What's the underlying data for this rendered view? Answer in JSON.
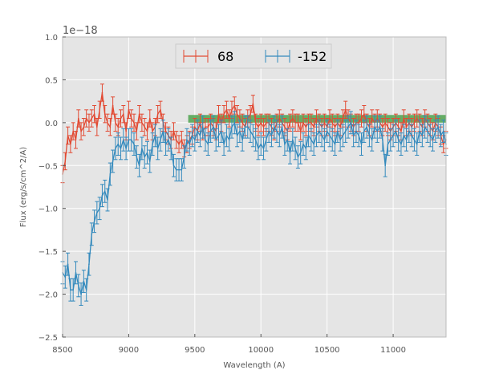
{
  "chart_data": {
    "type": "line",
    "title": "",
    "xlabel": "Wavelength (A)",
    "ylabel": "Flux (erg/s/cm^2/A)",
    "offset_label": "1e−18",
    "xlim": [
      8500,
      11400
    ],
    "ylim": [
      -2.5,
      1.0
    ],
    "x_ticks": [
      8500,
      9000,
      9500,
      10000,
      10500,
      11000
    ],
    "x_tick_labels": [
      "8500",
      "9000",
      "9500",
      "10000",
      "10500",
      "11000"
    ],
    "y_ticks": [
      -2.5,
      -2.0,
      -1.5,
      -1.0,
      -0.5,
      0.0,
      0.5,
      1.0
    ],
    "y_tick_labels": [
      "−2.5",
      "−2.0",
      "−1.5",
      "−1.0",
      "−0.5",
      "0.0",
      "0.5",
      "1.0"
    ],
    "grid": true,
    "background": "#e5e5e5",
    "legend_position": "top-center",
    "band": {
      "x_start": 9450,
      "x_end": 11400,
      "y_low": 0.0,
      "y_high": 0.09,
      "color": "#3a9a3a"
    },
    "series": [
      {
        "name": "68",
        "color": "#e24a33",
        "x": [
          8500,
          8520,
          8540,
          8560,
          8580,
          8600,
          8620,
          8640,
          8660,
          8680,
          8700,
          8720,
          8740,
          8760,
          8780,
          8800,
          8820,
          8840,
          8860,
          8880,
          8900,
          8920,
          8940,
          8960,
          8980,
          9000,
          9020,
          9040,
          9060,
          9080,
          9100,
          9120,
          9140,
          9160,
          9180,
          9200,
          9220,
          9240,
          9260,
          9280,
          9300,
          9320,
          9340,
          9360,
          9380,
          9400,
          9420,
          9440,
          9460,
          9480,
          9500,
          9520,
          9540,
          9560,
          9580,
          9600,
          9620,
          9640,
          9660,
          9680,
          9700,
          9720,
          9740,
          9760,
          9780,
          9800,
          9820,
          9840,
          9860,
          9880,
          9900,
          9920,
          9940,
          9960,
          9980,
          10000,
          10020,
          10040,
          10060,
          10080,
          10100,
          10120,
          10140,
          10160,
          10180,
          10200,
          10220,
          10240,
          10260,
          10280,
          10300,
          10320,
          10340,
          10360,
          10380,
          10400,
          10420,
          10440,
          10460,
          10480,
          10500,
          10520,
          10540,
          10560,
          10580,
          10600,
          10620,
          10640,
          10660,
          10680,
          10700,
          10720,
          10740,
          10760,
          10780,
          10800,
          10820,
          10840,
          10860,
          10880,
          10900,
          10920,
          10940,
          10960,
          10980,
          11000,
          11020,
          11040,
          11060,
          11080,
          11100,
          11120,
          11140,
          11160,
          11180,
          11200,
          11220,
          11240,
          11260,
          11280,
          11300,
          11320,
          11340,
          11360,
          11380,
          11400
        ],
        "y": [
          -0.6,
          -0.45,
          -0.15,
          -0.25,
          -0.1,
          -0.2,
          0.05,
          -0.1,
          -0.05,
          0.05,
          0.0,
          0.05,
          0.1,
          -0.05,
          0.15,
          0.35,
          0.1,
          0.0,
          -0.05,
          0.2,
          0.0,
          -0.05,
          0.05,
          0.1,
          -0.1,
          0.15,
          0.05,
          0.0,
          -0.1,
          0.1,
          0.0,
          -0.05,
          -0.1,
          0.05,
          -0.1,
          -0.05,
          0.1,
          0.15,
          0.0,
          -0.1,
          -0.15,
          -0.2,
          -0.1,
          -0.2,
          -0.25,
          -0.2,
          -0.3,
          -0.25,
          -0.2,
          -0.15,
          -0.05,
          -0.1,
          0.0,
          -0.1,
          -0.05,
          -0.05,
          0.0,
          -0.05,
          -0.1,
          0.1,
          0.0,
          0.1,
          0.15,
          0.05,
          0.15,
          0.2,
          0.1,
          0.05,
          0.0,
          -0.05,
          0.05,
          0.1,
          0.22,
          0.0,
          -0.05,
          0.0,
          -0.05,
          0.0,
          0.0,
          -0.05,
          -0.1,
          0.0,
          0.05,
          0.0,
          -0.05,
          -0.1,
          0.0,
          0.05,
          0.0,
          0.0,
          -0.1,
          0.0,
          -0.05,
          0.0,
          0.0,
          -0.05,
          0.05,
          0.0,
          -0.05,
          0.0,
          -0.05,
          0.05,
          0.0,
          -0.05,
          0.0,
          -0.05,
          0.05,
          0.15,
          0.05,
          0.0,
          -0.05,
          0.0,
          0.0,
          0.05,
          0.1,
          0.0,
          -0.05,
          0.05,
          0.0,
          0.05,
          0.0,
          -0.05,
          0.0,
          -0.05,
          -0.1,
          -0.05,
          0.0,
          -0.05,
          -0.1,
          0.05,
          -0.05,
          0.0,
          -0.05,
          0.0,
          0.05,
          0.0,
          -0.05,
          0.05,
          0.0,
          -0.05,
          -0.1,
          0.0,
          -0.05,
          -0.15,
          -0.25,
          -0.2
        ],
        "err": 0.1
      },
      {
        "name": "-152",
        "color": "#348abd",
        "x": [
          8500,
          8520,
          8540,
          8560,
          8580,
          8600,
          8620,
          8640,
          8660,
          8680,
          8700,
          8720,
          8740,
          8760,
          8780,
          8800,
          8820,
          8840,
          8860,
          8880,
          8900,
          8920,
          8940,
          8960,
          8980,
          9000,
          9020,
          9040,
          9060,
          9080,
          9100,
          9120,
          9140,
          9160,
          9180,
          9200,
          9220,
          9240,
          9260,
          9280,
          9300,
          9320,
          9340,
          9360,
          9380,
          9400,
          9420,
          9440,
          9460,
          9480,
          9500,
          9520,
          9540,
          9560,
          9580,
          9600,
          9620,
          9640,
          9660,
          9680,
          9700,
          9720,
          9740,
          9760,
          9780,
          9800,
          9820,
          9840,
          9860,
          9880,
          9900,
          9920,
          9940,
          9960,
          9980,
          10000,
          10020,
          10040,
          10060,
          10080,
          10100,
          10120,
          10140,
          10160,
          10180,
          10200,
          10220,
          10240,
          10260,
          10280,
          10300,
          10320,
          10340,
          10360,
          10380,
          10400,
          10420,
          10440,
          10460,
          10480,
          10500,
          10520,
          10540,
          10560,
          10580,
          10600,
          10620,
          10640,
          10660,
          10680,
          10700,
          10720,
          10740,
          10760,
          10780,
          10800,
          10820,
          10840,
          10860,
          10880,
          10900,
          10920,
          10940,
          10960,
          10980,
          11000,
          11020,
          11040,
          11060,
          11080,
          11100,
          11120,
          11140,
          11160,
          11180,
          11200,
          11220,
          11240,
          11260,
          11280,
          11300,
          11320,
          11340,
          11360,
          11380,
          11400
        ],
        "y": [
          -1.75,
          -1.8,
          -1.65,
          -1.95,
          -1.95,
          -1.75,
          -1.9,
          -2.0,
          -1.85,
          -1.95,
          -1.65,
          -1.3,
          -1.15,
          -1.05,
          -1.0,
          -0.85,
          -0.8,
          -0.9,
          -0.6,
          -0.45,
          -0.3,
          -0.25,
          -0.3,
          -0.2,
          -0.3,
          -0.2,
          -0.2,
          -0.25,
          -0.4,
          -0.5,
          -0.3,
          -0.4,
          -0.35,
          -0.45,
          -0.25,
          -0.15,
          -0.3,
          -0.2,
          -0.1,
          -0.25,
          -0.2,
          -0.3,
          -0.5,
          -0.55,
          -0.55,
          -0.55,
          -0.4,
          -0.2,
          -0.25,
          -0.15,
          -0.2,
          -0.1,
          -0.15,
          -0.05,
          -0.2,
          -0.25,
          -0.1,
          -0.05,
          -0.2,
          -0.15,
          -0.1,
          -0.25,
          -0.15,
          -0.2,
          -0.05,
          0.0,
          -0.15,
          -0.1,
          -0.2,
          -0.05,
          -0.05,
          -0.1,
          -0.15,
          -0.2,
          -0.3,
          -0.25,
          -0.3,
          -0.2,
          -0.1,
          -0.15,
          -0.05,
          -0.1,
          -0.15,
          -0.05,
          -0.25,
          -0.2,
          -0.35,
          -0.2,
          -0.3,
          -0.4,
          -0.35,
          -0.25,
          -0.3,
          -0.15,
          -0.2,
          -0.25,
          -0.15,
          -0.1,
          -0.15,
          -0.2,
          -0.1,
          -0.15,
          -0.2,
          -0.25,
          -0.1,
          -0.2,
          -0.15,
          -0.1,
          -0.05,
          0.0,
          -0.15,
          -0.1,
          -0.15,
          -0.25,
          -0.1,
          -0.05,
          -0.15,
          -0.2,
          -0.05,
          -0.1,
          -0.05,
          -0.2,
          -0.5,
          -0.25,
          -0.2,
          -0.15,
          -0.1,
          -0.2,
          -0.25,
          -0.15,
          -0.2,
          -0.1,
          -0.15,
          -0.2,
          -0.25,
          -0.1,
          -0.15,
          -0.05,
          -0.1,
          -0.15,
          -0.2,
          -0.1,
          -0.05,
          -0.15,
          -0.1,
          -0.25
        ],
        "err": 0.13
      }
    ]
  }
}
